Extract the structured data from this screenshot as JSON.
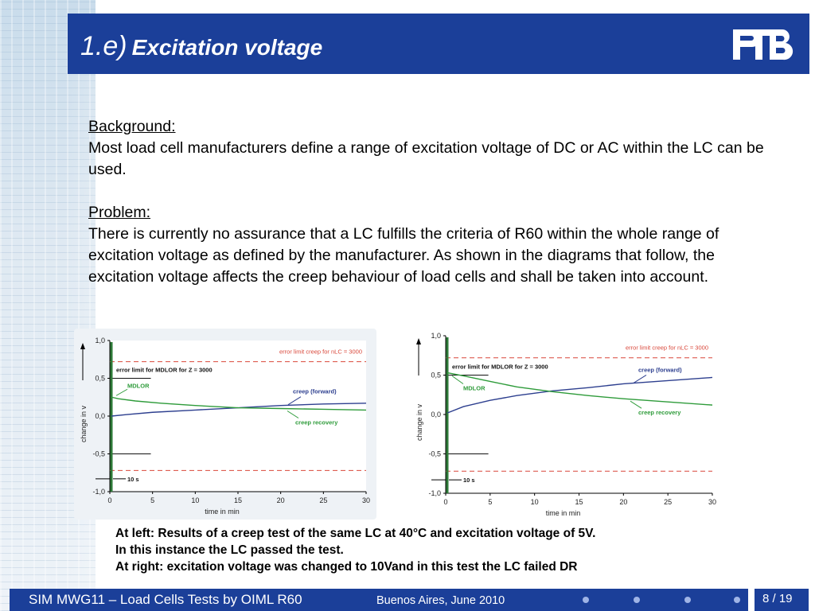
{
  "header": {
    "title_num": "1.e)",
    "title_text": "Excitation voltage",
    "logo": "PTB"
  },
  "content": {
    "background_head": "Background:",
    "background_text": "Most load cell manufacturers define a range of excitation voltage of DC or AC within the LC can be used.",
    "problem_head": "Problem:",
    "problem_text": "There is currently no assurance that a LC fulfills the criteria of R60 within the whole range of excitation voltage as defined by the manufacturer. As shown in the diagrams that follow, the excitation voltage affects the creep behaviour of load cells and shall be taken into account."
  },
  "captions": [
    "At left: Results of a creep test of the same LC at 40°C and excitation voltage of 5V.",
    "In this instance the LC passed the test.",
    "At right: excitation voltage was changed to 10Vand in this test the LC failed DR"
  ],
  "footer": {
    "left": "SIM MWG11 – Load Cells Tests by OIML R60",
    "location": "Buenos Aires, June 2010",
    "page": "8 / 19"
  },
  "chart_data": [
    {
      "type": "line",
      "xlabel": "time in min",
      "ylabel": "change in v",
      "xticks": [
        "0",
        "5",
        "10",
        "15",
        "20",
        "25",
        "30"
      ],
      "yticks": [
        "1,0",
        "0,5",
        "0,0",
        "-0,5",
        "-1,0"
      ],
      "xlim": [
        0,
        30
      ],
      "ylim": [
        -1.0,
        1.0
      ],
      "annotations": [
        "error limit creep for nLC = 3000",
        "error limit for MDLOR for Z = 3000",
        "MDLOR",
        "creep (forward)",
        "creep recovery",
        "10 s"
      ],
      "error_limit_creep": 0.72,
      "error_limit_mdlor": 0.5,
      "series": [
        {
          "name": "creep (forward)",
          "color": "#2d3f8f",
          "x": [
            0.2,
            2,
            5,
            10,
            15,
            20,
            25,
            30
          ],
          "y": [
            0.0,
            0.02,
            0.05,
            0.08,
            0.11,
            0.14,
            0.16,
            0.17
          ]
        },
        {
          "name": "creep recovery",
          "color": "#2e9b3a",
          "x": [
            0.2,
            1,
            3,
            6,
            10,
            15,
            20,
            25,
            30
          ],
          "y": [
            0.25,
            0.23,
            0.2,
            0.17,
            0.14,
            0.11,
            0.1,
            0.09,
            0.08
          ]
        }
      ]
    },
    {
      "type": "line",
      "xlabel": "time in min",
      "ylabel": "change in v",
      "xticks": [
        "0",
        "5",
        "10",
        "15",
        "20",
        "25",
        "30"
      ],
      "yticks": [
        "1,0",
        "0,5",
        "0,0",
        "-0,5",
        "-1,0"
      ],
      "xlim": [
        0,
        30
      ],
      "ylim": [
        -1.0,
        1.0
      ],
      "annotations": [
        "error limit creep for nLC = 3000",
        "error limit for MDLOR for Z = 3000",
        "MDLOR",
        "creep (forward)",
        "creep recovery",
        "10 s"
      ],
      "error_limit_creep": 0.72,
      "error_limit_mdlor": 0.5,
      "series": [
        {
          "name": "creep (forward)",
          "color": "#2d3f8f",
          "x": [
            0.2,
            2,
            5,
            8,
            12,
            16,
            20,
            25,
            30
          ],
          "y": [
            0.02,
            0.1,
            0.18,
            0.24,
            0.3,
            0.34,
            0.39,
            0.43,
            0.47
          ]
        },
        {
          "name": "creep recovery",
          "color": "#2e9b3a",
          "x": [
            0.2,
            2,
            5,
            8,
            12,
            16,
            20,
            25,
            30
          ],
          "y": [
            0.53,
            0.49,
            0.42,
            0.35,
            0.29,
            0.24,
            0.2,
            0.16,
            0.12
          ]
        }
      ]
    }
  ]
}
